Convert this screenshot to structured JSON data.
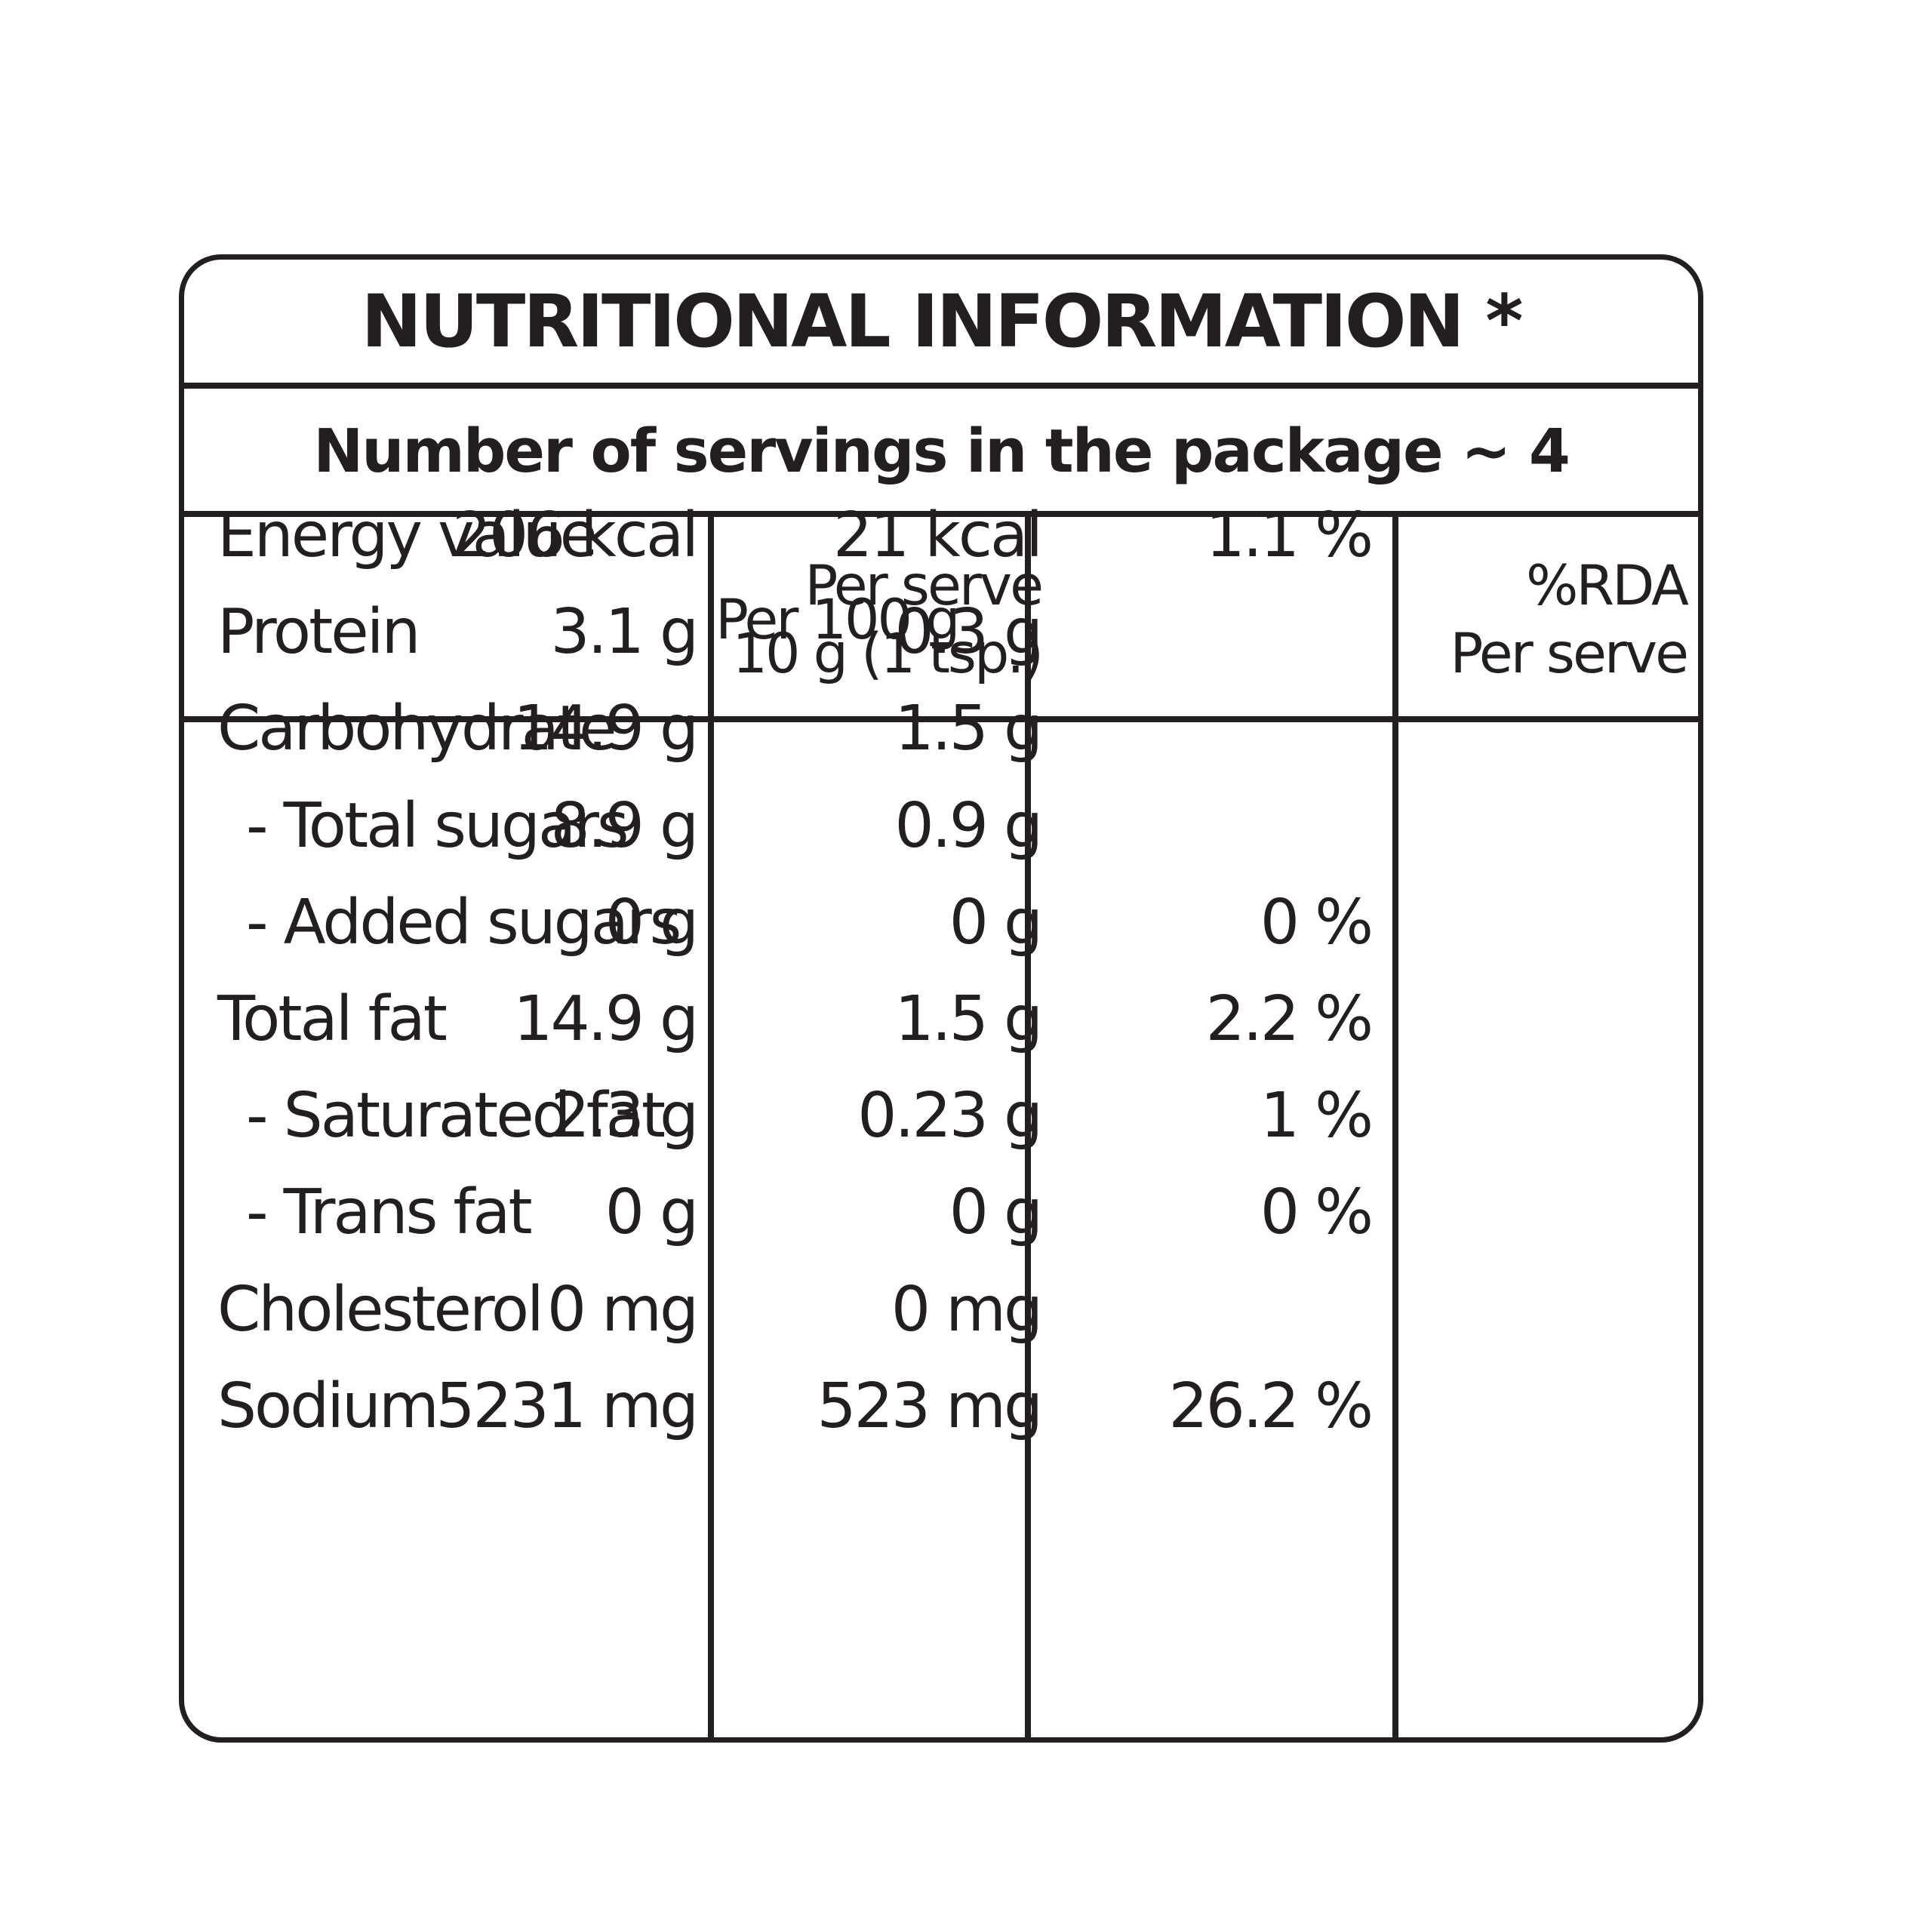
{
  "title": "NUTRITIONAL INFORMATION *",
  "servings": "Number of servings in the package ~ 4",
  "headers": {
    "per100_l1": "Per 100 g",
    "serve_l1": "Per serve",
    "serve_l2": "10 g (1 tsp.)",
    "rda_l1": "%RDA",
    "rda_l2": "Per serve"
  },
  "rows": [
    {
      "name": "Energy value",
      "sub": false,
      "per100": "206 kcal",
      "serve": "21 kcal",
      "rda": "1.1 %"
    },
    {
      "name": "Protein",
      "sub": false,
      "per100": "3.1 g",
      "serve": "0.3 g",
      "rda": ""
    },
    {
      "name": "Carbohydrate",
      "sub": false,
      "per100": "14.9 g",
      "serve": "1.5 g",
      "rda": ""
    },
    {
      "name": "- Total sugars",
      "sub": true,
      "per100": "8.9 g",
      "serve": "0.9 g",
      "rda": ""
    },
    {
      "name": "- Added sugars",
      "sub": true,
      "per100": "0 g",
      "serve": "0 g",
      "rda": "0 %"
    },
    {
      "name": "Total fat",
      "sub": false,
      "per100": "14.9 g",
      "serve": "1.5 g",
      "rda": "2.2 %"
    },
    {
      "name": "- Saturated fat",
      "sub": true,
      "per100": "2.3 g",
      "serve": "0.23 g",
      "rda": "1 %"
    },
    {
      "name": "- Trans fat",
      "sub": true,
      "per100": "0 g",
      "serve": "0 g",
      "rda": "0 %"
    },
    {
      "name": "Cholesterol",
      "sub": false,
      "per100": "0 mg",
      "serve": "0 mg",
      "rda": ""
    },
    {
      "name": "Sodium",
      "sub": false,
      "per100": "5231 mg",
      "serve": "523 mg",
      "rda": "26.2 %"
    }
  ]
}
